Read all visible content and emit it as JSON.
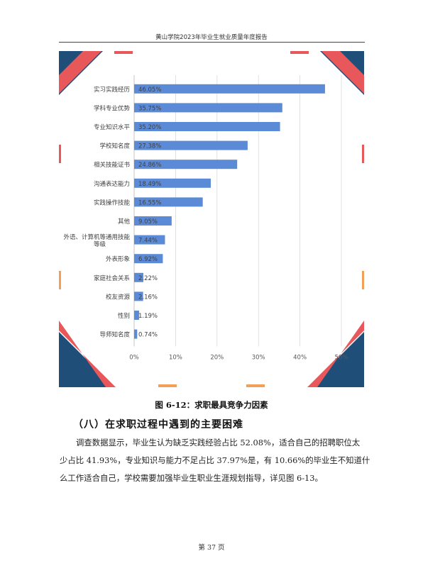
{
  "header": {
    "title": "黄山学院2023年毕业生就业质量年度报告"
  },
  "chart_data": {
    "type": "bar",
    "orientation": "horizontal",
    "categories": [
      "实习实践经历",
      "学科专业优势",
      "专业知识水平",
      "学校知名度",
      "相关技能证书",
      "沟通表达能力",
      "实践操作技能",
      "其他",
      "外语、计算机等通用技能等级",
      "外表形象",
      "家庭社会关系",
      "校友资源",
      "性别",
      "导师知名度"
    ],
    "values": [
      46.05,
      35.75,
      35.2,
      27.38,
      24.86,
      18.49,
      16.55,
      9.05,
      7.44,
      6.92,
      2.22,
      2.16,
      1.19,
      0.74
    ],
    "value_labels": [
      "46.05%",
      "35.75%",
      "35.20%",
      "27.38%",
      "24.86%",
      "18.49%",
      "16.55%",
      "9.05%",
      "7.44%",
      "6.92%",
      "2.22%",
      "2.16%",
      "1.19%",
      "0.74%"
    ],
    "x_ticks": [
      "0%",
      "10%",
      "20%",
      "30%",
      "40%",
      "50%"
    ],
    "xlim": [
      0,
      50
    ],
    "grid": true,
    "bar_color": "#5b8bd6"
  },
  "decor_colors": {
    "blue": "#1f4e79",
    "red": "#e8585a",
    "orange": "#f2a057"
  },
  "caption": "图 6-12：求职最具竞争力因素",
  "section": {
    "heading": "（八）在求职过程中遇到的主要困难"
  },
  "paragraph": {
    "lines": [
      "调查数据显示，毕业生认为缺乏实践经验占比 52.08%，适合自己的招聘职位太",
      "少占比 41.93%，专业知识与能力不足占比 37.97%是，有 10.66%的毕业生不知道什",
      "么工作适合自己，学校需要加强毕业生职业生涯规划指导，详见图 6-13。"
    ]
  },
  "footer": {
    "page": "第 37 页"
  }
}
